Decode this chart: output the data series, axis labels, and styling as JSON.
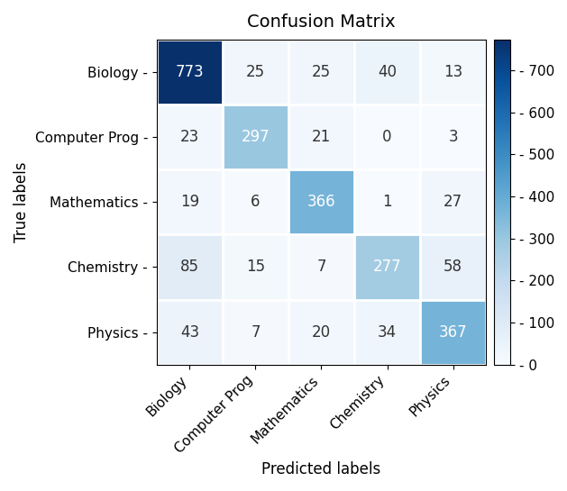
{
  "title": "Confusion Matrix",
  "xlabel": "Predicted labels",
  "ylabel": "True labels",
  "classes": [
    "Biology",
    "Computer Prog",
    "Mathematics",
    "Chemistry",
    "Physics"
  ],
  "matrix": [
    [
      773,
      25,
      25,
      40,
      13
    ],
    [
      23,
      297,
      21,
      0,
      3
    ],
    [
      19,
      6,
      366,
      1,
      27
    ],
    [
      85,
      15,
      7,
      277,
      58
    ],
    [
      43,
      7,
      20,
      34,
      367
    ]
  ],
  "colormap": "Blues",
  "vmin": 0,
  "vmax": 773,
  "colorbar_ticks": [
    0,
    100,
    200,
    300,
    400,
    500,
    600,
    700
  ],
  "text_threshold": 200,
  "text_color_high": "white",
  "text_color_low": "#333333",
  "figsize": [
    6.29,
    5.45
  ],
  "dpi": 100,
  "title_fontsize": 14,
  "label_fontsize": 12,
  "tick_fontsize": 11,
  "value_fontsize": 12
}
